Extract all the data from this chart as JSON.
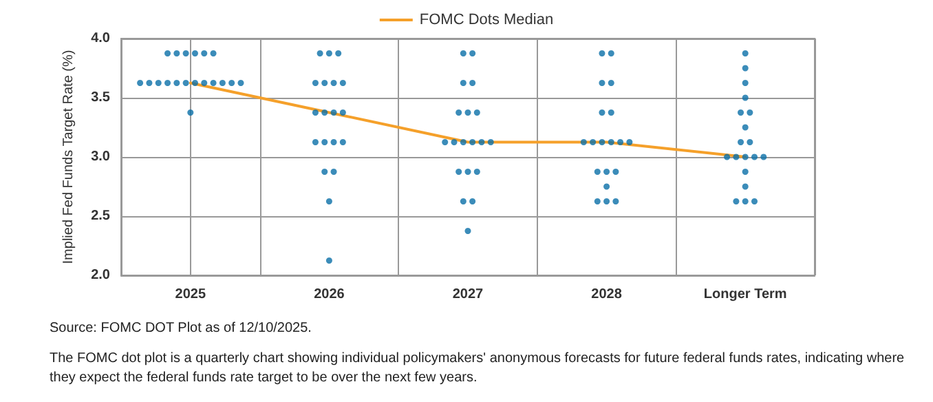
{
  "chart_data": {
    "type": "scatter",
    "ylabel": "Implied Fed Funds Target Rate (%)",
    "categories": [
      "2025",
      "2026",
      "2027",
      "2028",
      "Longer Term"
    ],
    "ylim": [
      2.0,
      4.0
    ],
    "yticks": [
      {
        "value": 2.0,
        "label": "2.0"
      },
      {
        "value": 2.5,
        "label": "2.5"
      },
      {
        "value": 3.0,
        "label": "3.0"
      },
      {
        "value": 3.5,
        "label": "3.5"
      },
      {
        "value": 4.0,
        "label": "4.0"
      }
    ],
    "grid": true,
    "legend": "top",
    "series": [
      {
        "type": "scatter",
        "color": "#0a6fa8",
        "marker": "circle",
        "values": [
          3.875,
          3.875,
          3.875,
          3.875,
          3.875
        ]
      },
      {
        "type": "scatter",
        "color": "#0a6fa8",
        "marker": "circle",
        "values": [
          3.875,
          3.875,
          3.875,
          3.875,
          3.75
        ]
      },
      {
        "type": "scatter",
        "color": "#0a6fa8",
        "marker": "circle",
        "values": [
          3.875,
          3.875,
          3.625,
          3.625,
          3.625
        ]
      },
      {
        "type": "scatter",
        "color": "#0a6fa8",
        "marker": "circle",
        "values": [
          3.875,
          3.625,
          3.625,
          3.625,
          3.5
        ]
      },
      {
        "type": "scatter",
        "color": "#0a6fa8",
        "marker": "circle",
        "values": [
          3.875,
          3.625,
          3.375,
          3.375,
          3.375
        ]
      },
      {
        "type": "scatter",
        "color": "#0a6fa8",
        "marker": "circle",
        "values": [
          3.875,
          3.625,
          3.375,
          3.375,
          3.375
        ]
      },
      {
        "type": "scatter",
        "color": "#0a6fa8",
        "marker": "circle",
        "values": [
          3.625,
          3.625,
          3.375,
          3.125,
          3.25
        ]
      },
      {
        "type": "scatter",
        "color": "#0a6fa8",
        "marker": "circle",
        "values": [
          3.625,
          3.375,
          3.125,
          3.125,
          3.125
        ]
      },
      {
        "type": "scatter",
        "color": "#0a6fa8",
        "marker": "circle",
        "values": [
          3.625,
          3.375,
          3.125,
          3.125,
          3.125
        ]
      },
      {
        "type": "scatter",
        "color": "#0a6fa8",
        "marker": "circle",
        "values": [
          3.625,
          3.375,
          3.125,
          3.125,
          3.0
        ]
      },
      {
        "type": "scatter",
        "color": "#0a6fa8",
        "marker": "circle",
        "values": [
          3.625,
          3.375,
          3.125,
          3.125,
          3.0
        ]
      },
      {
        "type": "scatter",
        "color": "#0a6fa8",
        "marker": "circle",
        "values": [
          3.625,
          3.125,
          3.125,
          3.125,
          3.0
        ]
      },
      {
        "type": "scatter",
        "color": "#0a6fa8",
        "marker": "circle",
        "values": [
          3.625,
          3.125,
          3.125,
          2.875,
          3.0
        ]
      },
      {
        "type": "scatter",
        "color": "#0a6fa8",
        "marker": "circle",
        "values": [
          3.625,
          3.125,
          2.875,
          2.875,
          3.0
        ]
      },
      {
        "type": "scatter",
        "color": "#0a6fa8",
        "marker": "circle",
        "values": [
          3.625,
          3.125,
          2.875,
          2.875,
          2.875
        ]
      },
      {
        "type": "scatter",
        "color": "#0a6fa8",
        "marker": "circle",
        "values": [
          3.625,
          2.875,
          2.875,
          2.75,
          2.75
        ]
      },
      {
        "type": "scatter",
        "color": "#0a6fa8",
        "marker": "circle",
        "values": [
          3.625,
          2.875,
          2.625,
          2.625,
          2.625
        ]
      },
      {
        "type": "scatter",
        "color": "#0a6fa8",
        "marker": "circle",
        "values": [
          3.625,
          2.625,
          2.625,
          2.625,
          2.625
        ]
      },
      {
        "type": "scatter",
        "color": "#0a6fa8",
        "marker": "circle",
        "values": [
          3.375,
          2.125,
          2.375,
          2.625,
          2.625
        ]
      },
      {
        "type": "line",
        "name": "FOMC Dots Median",
        "color": "#f5a02a",
        "marker": "none",
        "line_style": "solid",
        "values": [
          3.625,
          3.375,
          3.125,
          3.125,
          3.0
        ]
      }
    ],
    "annotations": [
      "Source: FOMC DOT Plot as of 12/10/2025.",
      "The FOMC dot plot is a quarterly chart showing individual policymakers' anonymous forecasts for future federal funds rates, indicating where they expect the federal funds rate target to be over the next few years."
    ]
  }
}
